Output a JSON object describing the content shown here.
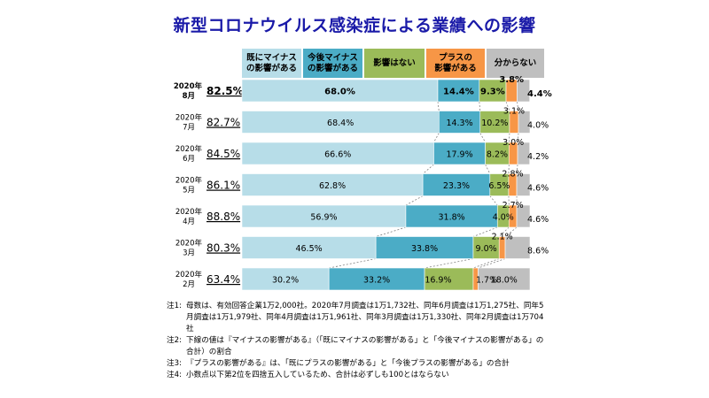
{
  "title": "新型コロナウイルス感染症による業績への影響",
  "colors": {
    "already_minus": "#b7dde8",
    "future_minus": "#4bacc6",
    "no_impact": "#9bbb59",
    "plus": "#f79646",
    "unknown": "#bfbfbf",
    "title": "#1a1aa8"
  },
  "chart_data": {
    "type": "bar",
    "orientation": "horizontal",
    "stacked": true,
    "title": "新型コロナウイルス感染症による業績への影響",
    "categories": [
      {
        "year": "2020年",
        "month": "8月"
      },
      {
        "year": "2020年",
        "month": "7月"
      },
      {
        "year": "2020年",
        "month": "6月"
      },
      {
        "year": "2020年",
        "month": "5月"
      },
      {
        "year": "2020年",
        "month": "4月"
      },
      {
        "year": "2020年",
        "month": "3月"
      },
      {
        "year": "2020年",
        "month": "2月"
      }
    ],
    "minus_totals": [
      "82.5%",
      "82.7%",
      "84.5%",
      "86.1%",
      "88.8%",
      "80.3%",
      "63.4%"
    ],
    "series": [
      {
        "name": "既にマイナス\nの影響がある",
        "color": "#b7dde8",
        "values": [
          68.0,
          68.4,
          66.6,
          62.8,
          56.9,
          46.5,
          30.2
        ]
      },
      {
        "name": "今後マイナス\nの影響がある",
        "color": "#4bacc6",
        "values": [
          14.4,
          14.3,
          17.9,
          23.3,
          31.8,
          33.8,
          33.2
        ]
      },
      {
        "name": "影響はない",
        "color": "#9bbb59",
        "values": [
          9.3,
          10.2,
          8.2,
          6.5,
          4.0,
          9.0,
          16.9
        ]
      },
      {
        "name": "プラスの\n影響がある",
        "color": "#f79646",
        "values": [
          3.8,
          3.1,
          3.0,
          2.8,
          2.7,
          2.1,
          1.7
        ]
      },
      {
        "name": "分からない",
        "color": "#bfbfbf",
        "values": [
          4.4,
          4.0,
          4.2,
          4.6,
          4.6,
          8.6,
          18.0
        ]
      }
    ],
    "xlim": [
      0,
      100
    ],
    "grid": false,
    "legend": "top"
  },
  "notes": [
    {
      "label": "注1:",
      "text": "母数は、有効回答企業1万2,000社。2020年7月調査は1万1,732社、同年6月調査は1万1,275社、同年5月調査は1万1,979社、同年4月調査は1万1,961社、同年3月調査は1万1,330社、同年2月調査は1万704社"
    },
    {
      "label": "注2:",
      "text": "下線の値は『マイナスの影響がある』（「既にマイナスの影響がある」と「今後マイナスの影響がある」の合計）の割合"
    },
    {
      "label": "注3:",
      "text": "『プラスの影響がある』は、「既にプラスの影響がある」と「今後プラスの影響がある」の合計"
    },
    {
      "label": "注4:",
      "text": "小数点以下第2位を四捨五入しているため、合計は必ずしも100とはならない"
    }
  ]
}
